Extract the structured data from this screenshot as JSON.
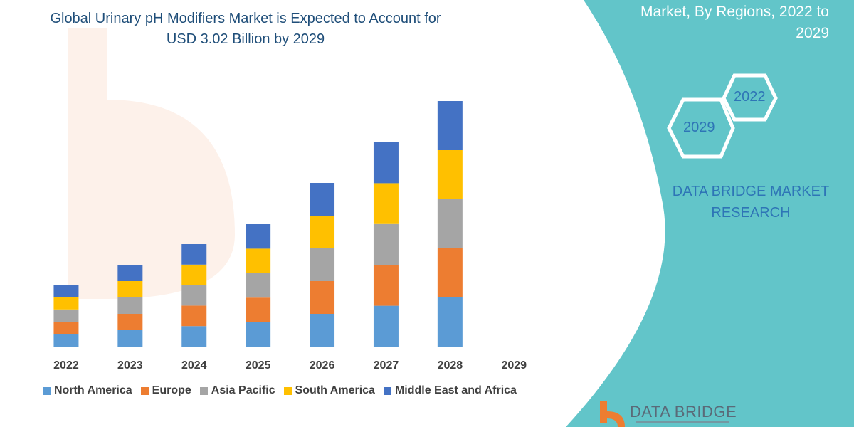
{
  "title_lines": [
    "Global Urinary pH Modifiers Market is Expected to Account for",
    "USD 3.02 Billion by 2029"
  ],
  "side_panel": {
    "title_lines": [
      "Market, By Regions, 2022 to",
      "2029"
    ],
    "hex_labels": [
      "2022",
      "2029"
    ],
    "brand_lines": [
      "DATA BRIDGE MARKET",
      "RESEARCH"
    ],
    "logo_text": "DATA BRIDGE",
    "panel_color": "#62c5c9"
  },
  "chart_data": {
    "type": "bar",
    "stacked": true,
    "categories": [
      "2022",
      "2023",
      "2024",
      "2025",
      "2026",
      "2027",
      "2028",
      "2029"
    ],
    "series": [
      {
        "name": "North America",
        "color": "#5b9bd5",
        "values": [
          17.4,
          23,
          28.8,
          34.4,
          46,
          57.4,
          69,
          0
        ]
      },
      {
        "name": "Europe",
        "color": "#ed7d31",
        "values": [
          17.4,
          23,
          28.8,
          34.4,
          46,
          57.4,
          69,
          0
        ]
      },
      {
        "name": "Asia Pacific",
        "color": "#a5a5a5",
        "values": [
          17.4,
          23,
          28.8,
          34.4,
          46,
          57.4,
          69,
          0
        ]
      },
      {
        "name": "South America",
        "color": "#ffc000",
        "values": [
          17.4,
          23,
          28.8,
          34.4,
          46,
          57.4,
          69,
          0
        ]
      },
      {
        "name": "Middle East and Africa",
        "color": "#4472c4",
        "values": [
          17.4,
          23,
          28.8,
          34.4,
          46,
          57.4,
          69,
          0
        ]
      }
    ],
    "title": "Global Urinary pH Modifiers Market is Expected to Account for USD 3.02 Billion by 2029",
    "xlabel": "",
    "ylabel": "",
    "grid": false,
    "legend": "bottom"
  }
}
